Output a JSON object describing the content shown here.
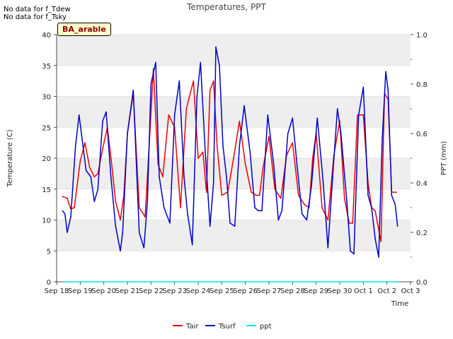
{
  "notes": [
    "No data for f_Tdew",
    "No data for f_Tsky"
  ],
  "badge": "BA_arable",
  "chart_data": {
    "type": "line",
    "title": "Temperatures, PPT",
    "xlabel": "Time",
    "ylabel": "Temperature (C)",
    "y2label": "PPT (mm)",
    "xlim": [
      0,
      15
    ],
    "ylim": [
      0,
      40
    ],
    "y2lim": [
      0.0,
      1.0
    ],
    "x_ticks": [
      "Sep 18",
      "Sep 19",
      "Sep 20",
      "Sep 21",
      "Sep 22",
      "Sep 23",
      "Sep 24",
      "Sep 25",
      "Sep 26",
      "Sep 27",
      "Sep 28",
      "Sep 29",
      "Sep 30",
      "Oct 1",
      "Oct 2",
      "Oct 3"
    ],
    "y_ticks": [
      "0",
      "5",
      "10",
      "15",
      "20",
      "25",
      "30",
      "35",
      "40"
    ],
    "y2_ticks": [
      "0.0",
      "0.2",
      "0.4",
      "0.6",
      "0.8",
      "1.0"
    ],
    "grid": "horizontal bands",
    "legend": "bottom-center",
    "series": [
      {
        "name": "Tair",
        "color": "#ee0000",
        "axis": "left",
        "x": [
          0.25,
          0.45,
          0.6,
          0.75,
          0.9,
          1.0,
          1.2,
          1.4,
          1.6,
          1.75,
          1.95,
          2.15,
          2.35,
          2.5,
          2.7,
          2.85,
          3.0,
          3.25,
          3.5,
          3.75,
          3.95,
          4.1,
          4.3,
          4.5,
          4.75,
          5.0,
          5.25,
          5.5,
          5.8,
          6.0,
          6.2,
          6.35,
          6.5,
          6.65,
          6.8,
          7.0,
          7.25,
          7.5,
          7.75,
          8.0,
          8.25,
          8.45,
          8.6,
          8.75,
          9.0,
          9.25,
          9.5,
          9.75,
          10.0,
          10.25,
          10.5,
          10.7,
          10.85,
          11.0,
          11.25,
          11.5,
          11.75,
          12.0,
          12.2,
          12.4,
          12.55,
          12.75,
          13.0,
          13.2,
          13.35,
          13.5,
          13.75,
          13.9,
          14.05,
          14.2,
          14.4
        ],
        "y": [
          13.8,
          13.5,
          11.8,
          12.0,
          16.5,
          19.5,
          22.5,
          18.5,
          17.0,
          17.5,
          21.5,
          25.0,
          18.5,
          13.0,
          10.0,
          14.0,
          24.0,
          30.5,
          12.0,
          10.5,
          24.0,
          34.5,
          19.0,
          17.0,
          27.0,
          25.0,
          12.0,
          28.0,
          32.5,
          20.0,
          21.0,
          14.5,
          31.0,
          32.5,
          22.0,
          14.0,
          14.5,
          20.0,
          26.0,
          19.0,
          14.5,
          14.0,
          14.0,
          18.5,
          23.5,
          15.0,
          13.5,
          20.5,
          22.5,
          14.0,
          12.5,
          12.0,
          20.0,
          24.0,
          12.0,
          10.0,
          20.5,
          26.0,
          13.5,
          9.5,
          9.5,
          27.0,
          27.0,
          16.0,
          12.0,
          11.5,
          6.5,
          30.5,
          29.5,
          14.5,
          14.5
        ]
      },
      {
        "name": "Tsurf",
        "color": "#0000cc",
        "axis": "left",
        "x": [
          0.25,
          0.35,
          0.45,
          0.6,
          0.8,
          0.95,
          1.05,
          1.25,
          1.45,
          1.6,
          1.75,
          1.95,
          2.1,
          2.3,
          2.5,
          2.7,
          2.8,
          3.0,
          3.25,
          3.5,
          3.7,
          3.85,
          4.0,
          4.2,
          4.35,
          4.55,
          4.8,
          5.0,
          5.2,
          5.4,
          5.55,
          5.75,
          5.95,
          6.1,
          6.3,
          6.5,
          6.65,
          6.75,
          6.9,
          7.05,
          7.2,
          7.35,
          7.55,
          7.75,
          7.95,
          8.2,
          8.4,
          8.55,
          8.7,
          8.95,
          9.2,
          9.4,
          9.55,
          9.8,
          10.0,
          10.2,
          10.4,
          10.6,
          10.8,
          11.05,
          11.3,
          11.5,
          11.7,
          11.9,
          12.05,
          12.3,
          12.45,
          12.6,
          12.8,
          13.0,
          13.2,
          13.35,
          13.5,
          13.65,
          13.8,
          13.95,
          14.05,
          14.2,
          14.35,
          14.45
        ],
        "y": [
          11.5,
          11.0,
          8.0,
          10.5,
          22.0,
          27.0,
          24.0,
          18.0,
          17.0,
          13.0,
          15.0,
          26.0,
          27.5,
          17.0,
          9.0,
          5.0,
          8.0,
          24.0,
          31.0,
          8.0,
          5.5,
          13.0,
          32.0,
          35.5,
          17.0,
          12.0,
          9.5,
          27.0,
          32.5,
          17.0,
          11.0,
          6.0,
          30.0,
          35.5,
          21.0,
          9.0,
          16.0,
          38.0,
          35.0,
          22.0,
          17.0,
          9.5,
          9.0,
          22.0,
          28.5,
          21.0,
          12.0,
          11.5,
          11.5,
          27.0,
          19.0,
          10.0,
          11.5,
          24.0,
          26.5,
          18.5,
          11.0,
          10.0,
          15.5,
          26.5,
          16.0,
          5.5,
          17.0,
          28.0,
          24.0,
          13.0,
          5.0,
          4.5,
          27.0,
          31.5,
          14.0,
          12.0,
          7.0,
          4.0,
          23.0,
          34.0,
          31.0,
          14.0,
          12.5,
          9.0
        ]
      },
      {
        "name": "ppt",
        "color": "#00e5ee",
        "axis": "right",
        "x": [
          0.35,
          14.45
        ],
        "y": [
          0.0,
          0.0
        ]
      }
    ]
  }
}
